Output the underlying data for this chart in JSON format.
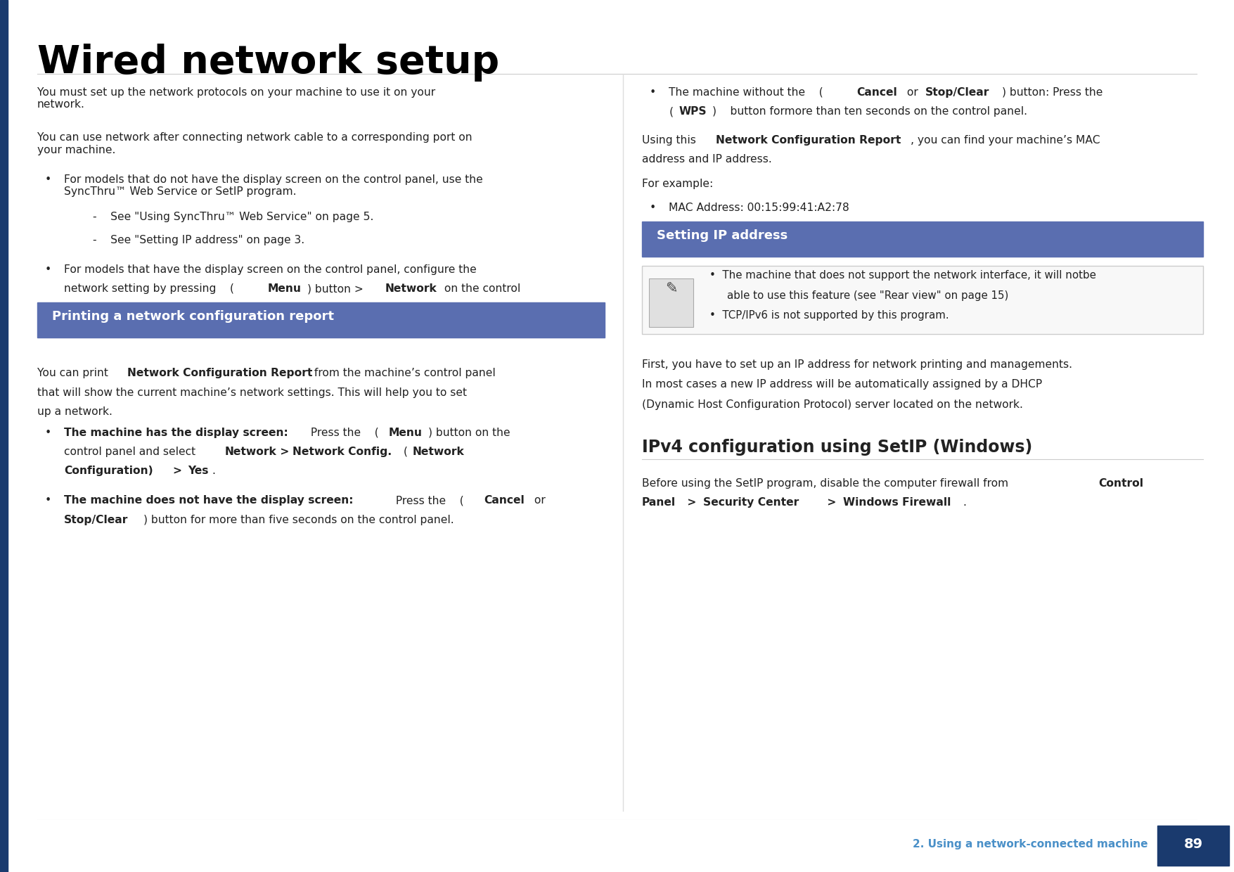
{
  "title": "Wired network setup",
  "title_color": "#000000",
  "bg_color": "#ffffff",
  "left_bar_color": "#1a3a6e",
  "section_header_bg": "#5a6eb0",
  "section_header_text_color": "#ffffff",
  "footer_bg": "#1a3a6e",
  "footer_label_color": "#4a90c8",
  "body_text_color": "#222222",
  "note_border_color": "#cccccc",
  "note_bg_color": "#f8f8f8",
  "divider_color": "#cccccc",
  "footer_text": "2. Using a network-connected machine",
  "footer_page": "89",
  "section1_header": "Printing a network configuration report",
  "section2_header": "Setting IP address"
}
